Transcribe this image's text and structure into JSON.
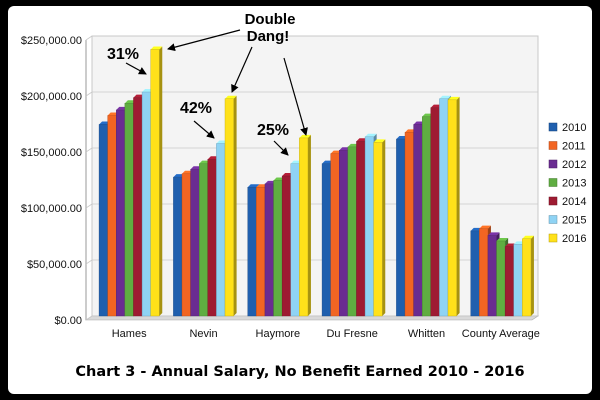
{
  "chart_data": {
    "type": "bar",
    "title": "Chart 3 - Annual Salary, No Benefit Earned 2010 - 2016",
    "xlabel": "",
    "ylabel": "",
    "ylim": [
      0,
      250000
    ],
    "y_ticks": [
      "$0.00",
      "$50,000.00",
      "$100,000.00",
      "$150,000.00",
      "$200,000.00",
      "$250,000.00"
    ],
    "y_tick_values": [
      0,
      50000,
      100000,
      150000,
      200000,
      250000
    ],
    "grid": true,
    "legend_position": "right",
    "categories": [
      "Hames",
      "Nevin",
      "Haymore",
      "Du Fresne",
      "Whitten",
      "County Average"
    ],
    "series": [
      {
        "name": "2010",
        "color": "#1f5fae",
        "values": [
          171000,
          124000,
          115000,
          136000,
          158000,
          76000
        ]
      },
      {
        "name": "2011",
        "color": "#f26522",
        "values": [
          179000,
          127000,
          115000,
          145000,
          164000,
          78000
        ]
      },
      {
        "name": "2012",
        "color": "#6a2c91",
        "values": [
          184000,
          131000,
          118000,
          148000,
          171000,
          72000
        ]
      },
      {
        "name": "2013",
        "color": "#5fad41",
        "values": [
          190000,
          136000,
          121000,
          151000,
          178000,
          67000
        ]
      },
      {
        "name": "2014",
        "color": "#9e1b32",
        "values": [
          195000,
          140000,
          125000,
          156000,
          186000,
          62000
        ]
      },
      {
        "name": "2015",
        "color": "#8fd3f4",
        "values": [
          200000,
          154000,
          136000,
          160000,
          194000,
          64000
        ]
      },
      {
        "name": "2016",
        "color": "#ffe11a",
        "values": [
          238000,
          194000,
          159000,
          155000,
          193000,
          69000
        ]
      }
    ],
    "annotations": {
      "dang_line1": "Double",
      "dang_line2": "Dang!",
      "pct_hames": "31%",
      "pct_nevin": "42%",
      "pct_haymore": "25%"
    }
  }
}
